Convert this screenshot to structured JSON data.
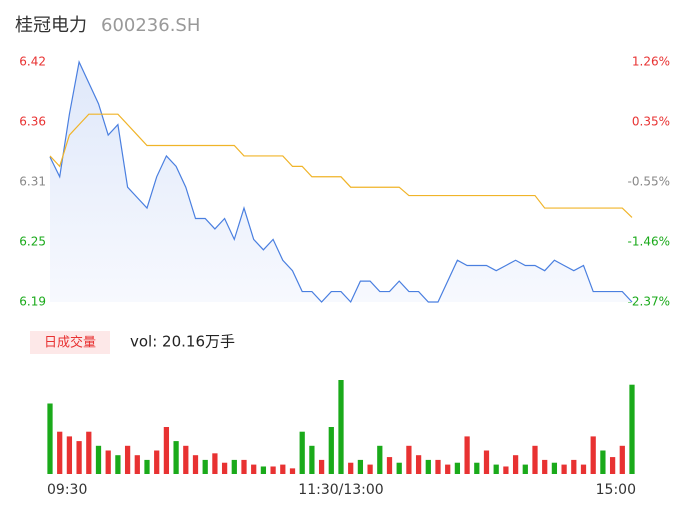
{
  "header": {
    "name": "桂冠电力",
    "code": "600236.SH"
  },
  "chart_data": [
    {
      "type": "line",
      "x": [
        0,
        4,
        8,
        12,
        16,
        20,
        24,
        28,
        32,
        36,
        40,
        44,
        48,
        52,
        56,
        60,
        64,
        68,
        72,
        76,
        80,
        84,
        88,
        92,
        96,
        100,
        104,
        108,
        112,
        116,
        120,
        124,
        128,
        132,
        136,
        140,
        144,
        148,
        152,
        156,
        160,
        164,
        168,
        172,
        176,
        180,
        184,
        188,
        192,
        196,
        200,
        204,
        208,
        212,
        216,
        220,
        224,
        228,
        232,
        236,
        240
      ],
      "xlim": [
        0,
        240
      ],
      "xticks": [
        {
          "value": 0,
          "label": "09:30"
        },
        {
          "value": 120,
          "label": "11:30/13:00"
        },
        {
          "value": 240,
          "label": "15:00"
        }
      ],
      "ylim": [
        6.19,
        6.42
      ],
      "yticks": [
        6.42,
        {
          "value": 6.3625,
          "label": "6.36"
        },
        {
          "value": 6.305,
          "label": "6.31"
        },
        {
          "value": 6.2475,
          "label": "6.25"
        },
        6.19
      ],
      "y2lim": [
        -2.37,
        1.26
      ],
      "y2ticks": [
        {
          "value": 1.26,
          "label": "1.26%"
        },
        {
          "value": 0.3525,
          "label": "0.35%"
        },
        {
          "value": -0.555,
          "label": "-0.55%"
        },
        {
          "value": -1.4625,
          "label": "-1.46%"
        },
        {
          "value": -2.37,
          "label": "-2.37%"
        }
      ],
      "ytick_colors": [
        "#e83232",
        "#e83232",
        "#888888",
        "#1aaa1a",
        "#1aaa1a"
      ],
      "series": [
        {
          "color": "#4a7fe0",
          "values": [
            6.329,
            6.31,
            6.37,
            6.42,
            6.4,
            6.38,
            6.35,
            6.36,
            6.3,
            6.29,
            6.28,
            6.31,
            6.33,
            6.32,
            6.3,
            6.27,
            6.27,
            6.26,
            6.27,
            6.25,
            6.28,
            6.25,
            6.24,
            6.25,
            6.23,
            6.22,
            6.2,
            6.2,
            6.19,
            6.2,
            6.2,
            6.19,
            6.21,
            6.21,
            6.2,
            6.2,
            6.21,
            6.2,
            6.2,
            6.19,
            6.19,
            6.21,
            6.23,
            6.225,
            6.225,
            6.225,
            6.22,
            6.225,
            6.23,
            6.225,
            6.225,
            6.22,
            6.23,
            6.225,
            6.22,
            6.225,
            6.2,
            6.2,
            6.2,
            6.2,
            6.19
          ]
        },
        {
          "color": "#f0b429",
          "values": [
            6.33,
            6.32,
            6.35,
            6.36,
            6.37,
            6.37,
            6.37,
            6.37,
            6.36,
            6.35,
            6.34,
            6.34,
            6.34,
            6.34,
            6.34,
            6.34,
            6.34,
            6.34,
            6.34,
            6.34,
            6.33,
            6.33,
            6.33,
            6.33,
            6.33,
            6.32,
            6.32,
            6.31,
            6.31,
            6.31,
            6.31,
            6.3,
            6.3,
            6.3,
            6.3,
            6.3,
            6.3,
            6.292,
            6.292,
            6.292,
            6.292,
            6.292,
            6.292,
            6.292,
            6.292,
            6.292,
            6.292,
            6.292,
            6.292,
            6.292,
            6.292,
            6.28,
            6.28,
            6.28,
            6.28,
            6.28,
            6.28,
            6.28,
            6.28,
            6.28,
            6.271
          ]
        }
      ]
    },
    {
      "type": "bar",
      "label": "日成交量",
      "vol_text": "vol: 20.16万手",
      "x": [
        0,
        4,
        8,
        12,
        16,
        20,
        24,
        28,
        32,
        36,
        40,
        44,
        48,
        52,
        56,
        60,
        64,
        68,
        72,
        76,
        80,
        84,
        88,
        92,
        96,
        100,
        104,
        108,
        112,
        116,
        120,
        124,
        128,
        132,
        136,
        140,
        144,
        148,
        152,
        156,
        160,
        164,
        168,
        172,
        176,
        180,
        184,
        188,
        192,
        196,
        200,
        204,
        208,
        212,
        216,
        220,
        224,
        228,
        232,
        236,
        240
      ],
      "xlim": [
        0,
        240
      ],
      "ylim": [
        0,
        100
      ],
      "values": [
        75,
        45,
        40,
        35,
        45,
        30,
        25,
        20,
        30,
        20,
        15,
        25,
        50,
        35,
        30,
        20,
        15,
        22,
        12,
        15,
        15,
        10,
        8,
        8,
        10,
        6,
        45,
        30,
        15,
        50,
        100,
        12,
        15,
        10,
        30,
        18,
        12,
        30,
        20,
        15,
        15,
        10,
        12,
        40,
        12,
        25,
        10,
        8,
        20,
        10,
        30,
        15,
        12,
        10,
        15,
        10,
        40,
        25,
        18,
        30,
        95
      ],
      "colors": [
        "#1aaa1a",
        "#e83232",
        "#e83232",
        "#e83232",
        "#e83232",
        "#1aaa1a",
        "#e83232",
        "#1aaa1a",
        "#e83232",
        "#e83232",
        "#1aaa1a",
        "#e83232",
        "#e83232",
        "#1aaa1a",
        "#e83232",
        "#e83232",
        "#1aaa1a",
        "#e83232",
        "#e83232",
        "#1aaa1a",
        "#e83232",
        "#e83232",
        "#1aaa1a",
        "#e83232",
        "#e83232",
        "#e83232",
        "#1aaa1a",
        "#1aaa1a",
        "#e83232",
        "#1aaa1a",
        "#1aaa1a",
        "#e83232",
        "#1aaa1a",
        "#e83232",
        "#1aaa1a",
        "#e83232",
        "#1aaa1a",
        "#e83232",
        "#e83232",
        "#1aaa1a",
        "#e83232",
        "#e83232",
        "#1aaa1a",
        "#e83232",
        "#1aaa1a",
        "#e83232",
        "#1aaa1a",
        "#e83232",
        "#e83232",
        "#1aaa1a",
        "#e83232",
        "#e83232",
        "#1aaa1a",
        "#e83232",
        "#e83232",
        "#e83232",
        "#e83232",
        "#1aaa1a",
        "#e83232",
        "#e83232",
        "#1aaa1a"
      ]
    }
  ]
}
